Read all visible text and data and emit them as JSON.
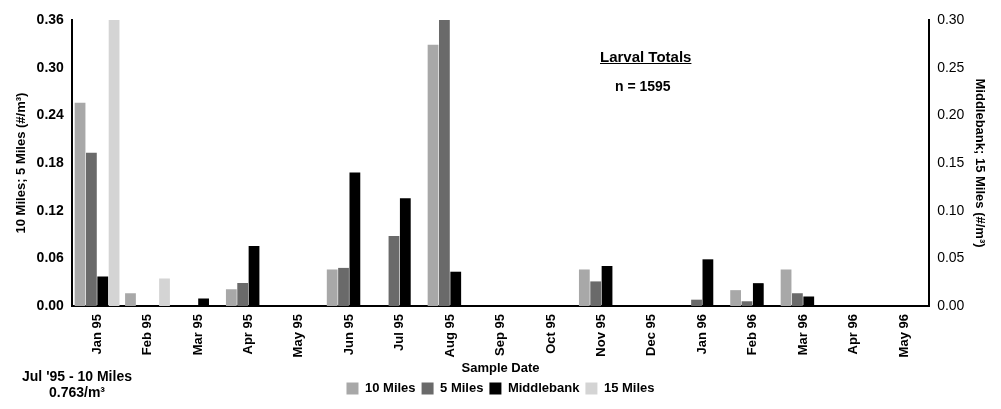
{
  "chart_data": {
    "type": "bar",
    "xlabel": "Sample Date",
    "ylabel": "10 Miles; 5 Miles (#/m³)",
    "y2label": "Middlebank; 15 Miles (#/m³)",
    "categories": [
      "Jan 95",
      "Feb 95",
      "Mar 95",
      "Apr 95",
      "May 95",
      "Jun 95",
      "Jul 95",
      "Aug 95",
      "Sep 95",
      "Oct 95",
      "Nov 95",
      "Dec 95",
      "Jan 96",
      "Feb 96",
      "Mar 96",
      "Apr 96",
      "May 96"
    ],
    "series": [
      {
        "name": "10 Miles",
        "color": "#a8a8a8",
        "values": [
          0.256,
          0.016,
          0,
          0.021,
          0,
          0.046,
          null,
          0.329,
          0,
          0,
          0.046,
          0,
          0,
          0.02,
          0.046,
          0,
          0
        ]
      },
      {
        "name": "5 Miles",
        "color": "#6a6a6a",
        "values": [
          0.193,
          0,
          0,
          0.029,
          0,
          0.048,
          0.088,
          0.36,
          0,
          0,
          0.031,
          0,
          0.008,
          0.006,
          0.016,
          0,
          0
        ]
      },
      {
        "name": "Middlebank",
        "color": "#000000",
        "axis": "y2",
        "values": [
          0.031,
          0,
          0.008,
          0.063,
          0,
          0.14,
          0.113,
          0.036,
          0,
          0,
          0.042,
          0,
          0.049,
          0.024,
          0.01,
          0,
          0
        ]
      },
      {
        "name": "15 Miles",
        "color": "#d4d4d4",
        "axis": "y2",
        "values": [
          0.3,
          0.029,
          0,
          0,
          0,
          0,
          0,
          0,
          0,
          0,
          0,
          0,
          0,
          0,
          0,
          0,
          0
        ]
      }
    ],
    "ylim": [
      0,
      0.36
    ],
    "yticks": [
      {
        "value": 0,
        "label": "0.00"
      },
      0.06,
      0.12,
      0.18,
      0.24,
      {
        "value": 0.3,
        "label": "0.30"
      },
      0.36
    ],
    "y2lim": [
      0,
      0.3
    ],
    "y2ticks": [
      {
        "value": 0,
        "label": "0.00"
      },
      0.05,
      {
        "value": 0.1,
        "label": "0.10"
      },
      0.15,
      {
        "value": 0.2,
        "label": "0.20"
      },
      0.25,
      {
        "value": 0.3,
        "label": "0.30"
      }
    ],
    "grid": false,
    "legend": "bottom",
    "annotations": [
      "Larval Totals",
      "n = 1595",
      "Jul '95 - 10 Miles 0.763/m³"
    ]
  }
}
